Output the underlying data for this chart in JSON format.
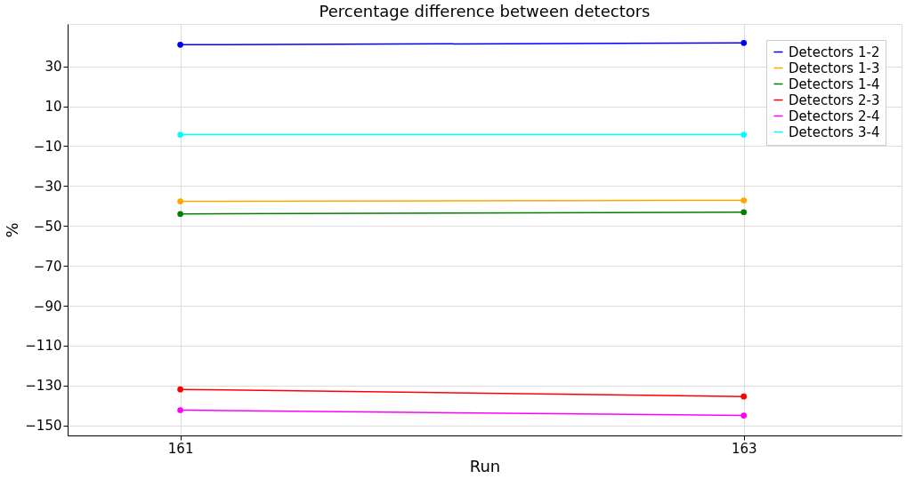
{
  "chart_data": {
    "type": "line",
    "title": "Percentage difference between detectors",
    "xlabel": "Run",
    "ylabel": "%",
    "x": [
      161,
      163
    ],
    "series": [
      {
        "name": "Detectors 1-2",
        "color": "#0000ff",
        "values": [
          40.8,
          41.7
        ]
      },
      {
        "name": "Detectors 1-3",
        "color": "#ffa500",
        "values": [
          -37.7,
          -37.2
        ]
      },
      {
        "name": "Detectors 1-4",
        "color": "#008000",
        "values": [
          -44.0,
          -43.1
        ]
      },
      {
        "name": "Detectors 2-3",
        "color": "#ff0000",
        "values": [
          -131.9,
          -135.5
        ]
      },
      {
        "name": "Detectors 2-4",
        "color": "#ff00ff",
        "values": [
          -142.3,
          -145.0
        ]
      },
      {
        "name": "Detectors 3-4",
        "color": "#00ffff",
        "values": [
          -4.3,
          -4.3
        ]
      }
    ],
    "xlim": [
      160.6,
      163.56
    ],
    "xticks": [
      161,
      163
    ],
    "ylim": [
      -155,
      51.2
    ],
    "yticks": [
      30,
      10,
      {
        "value": -10,
        "label": "−10"
      },
      {
        "value": -30,
        "label": "−30"
      },
      {
        "value": -50,
        "label": "−50"
      },
      {
        "value": -70,
        "label": "−70"
      },
      {
        "value": -90,
        "label": "−90"
      },
      {
        "value": -110,
        "label": "−110"
      },
      {
        "value": -130,
        "label": "−130"
      },
      {
        "value": -150,
        "label": "−150"
      }
    ],
    "grid": true,
    "legend": "top right",
    "marker": "circle",
    "line_style": "solid"
  }
}
